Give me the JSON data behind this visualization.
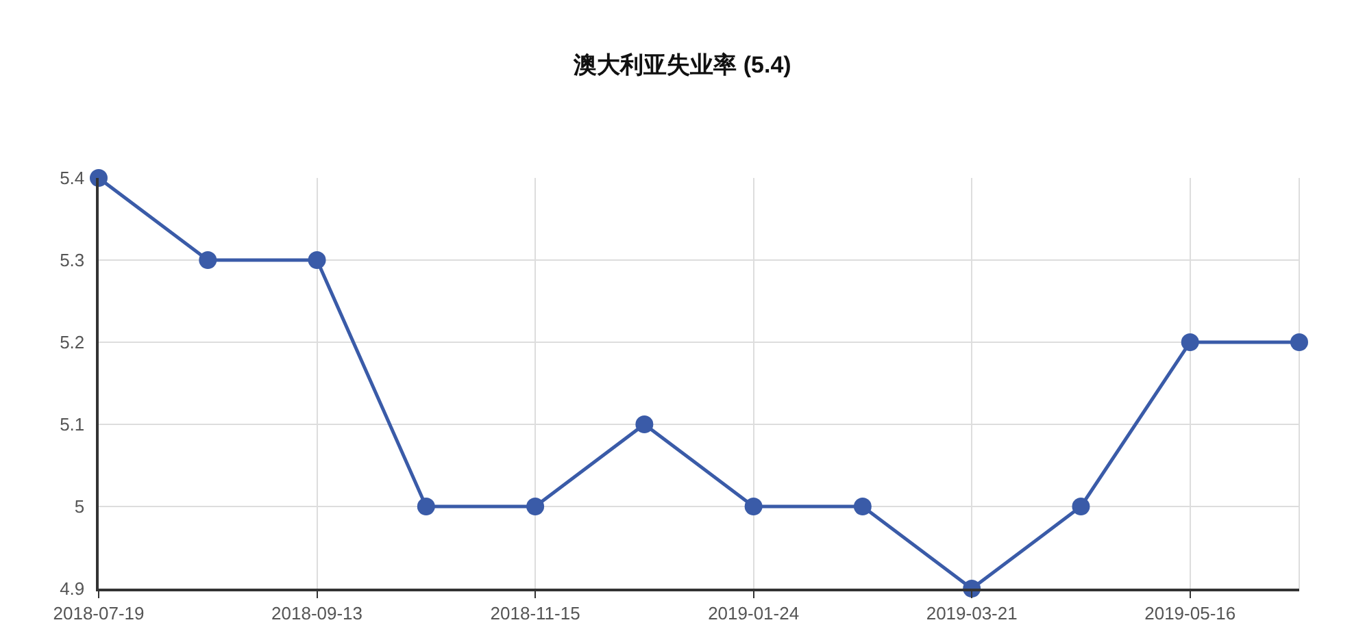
{
  "chart_data": {
    "type": "line",
    "title": "澳大利亚失业率 (5.4)",
    "categories": [
      "2018-07-19",
      null,
      "2018-09-13",
      null,
      "2018-11-15",
      null,
      "2019-01-24",
      null,
      "2019-03-21",
      null,
      "2019-05-16",
      null
    ],
    "series": [
      {
        "color": "#3a5ba8",
        "values": [
          5.4,
          5.3,
          5.3,
          5.0,
          5.0,
          5.1,
          5.0,
          5.0,
          4.9,
          5.0,
          5.2,
          5.2
        ]
      }
    ],
    "ylim": [
      4.9,
      5.4
    ],
    "yticks": [
      4.9,
      5,
      5.1,
      5.2,
      5.3,
      5.4
    ],
    "grid": true,
    "marker": "circle",
    "line_style": "solid"
  }
}
